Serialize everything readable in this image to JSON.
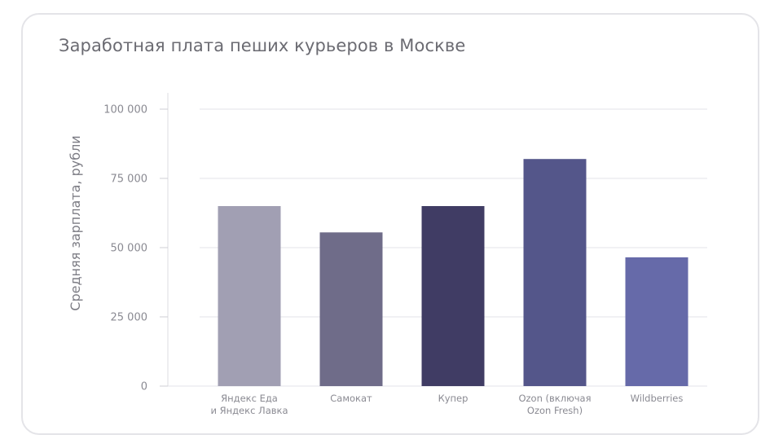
{
  "chart_data": {
    "type": "bar",
    "title": "Заработная плата пеших курьеров в Москве",
    "xlabel": "",
    "ylabel": "Средняя зарплата, рубли",
    "ylim": [
      0,
      100000
    ],
    "yticks": [
      0,
      25000,
      50000,
      75000,
      100000
    ],
    "ytick_labels": [
      "0",
      "25 000",
      "50 000",
      "75 000",
      "100 000"
    ],
    "grid": true,
    "legend": "none",
    "categories": [
      [
        "Яндекс Еда",
        "и Яндекс Лавка"
      ],
      [
        "Самокат"
      ],
      [
        "Купер"
      ],
      [
        "Ozon (включая",
        "Ozon Fresh)"
      ],
      [
        "Wildberries"
      ]
    ],
    "values": [
      65000,
      55500,
      65000,
      82000,
      46500
    ],
    "colors": [
      "#a19fb3",
      "#6f6c89",
      "#403c64",
      "#54568a",
      "#666aa9"
    ]
  }
}
